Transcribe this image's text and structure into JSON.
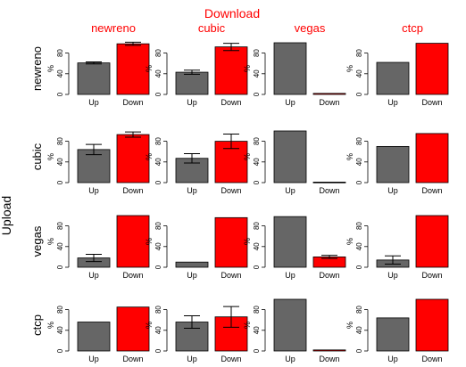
{
  "chart_data": {
    "type": "bar",
    "title": "Download",
    "row_title": "Upload",
    "download_labels": [
      "newreno",
      "cubic",
      "vegas",
      "ctcp"
    ],
    "upload_labels": [
      "newreno",
      "cubic",
      "vegas",
      "ctcp"
    ],
    "categories": [
      "Up",
      "Down"
    ],
    "ylabel": "%",
    "ylim": [
      0,
      100
    ],
    "yticks": [
      0,
      40,
      80
    ],
    "colors": {
      "Up": "#666666",
      "Down": "#ff0000",
      "title": "#ff0000"
    },
    "panels": [
      [
        {
          "values": [
            61,
            98
          ],
          "errors": [
            [
              59,
              63
            ],
            [
              95,
              101
            ]
          ]
        },
        {
          "values": [
            43,
            92
          ],
          "errors": [
            [
              39,
              47
            ],
            [
              85,
              99
            ]
          ]
        },
        {
          "values": [
            100,
            2
          ],
          "errors": null
        },
        {
          "values": [
            62,
            99
          ],
          "errors": null
        }
      ],
      [
        {
          "values": [
            64,
            93
          ],
          "errors": [
            [
              54,
              74
            ],
            [
              88,
              98
            ]
          ]
        },
        {
          "values": [
            47,
            80
          ],
          "errors": [
            [
              38,
              56
            ],
            [
              66,
              94
            ]
          ]
        },
        {
          "values": [
            100,
            1
          ],
          "errors": null
        },
        {
          "values": [
            70,
            95
          ],
          "errors": null
        }
      ],
      [
        {
          "values": [
            18,
            100
          ],
          "errors": [
            [
              11,
              25
            ],
            null
          ]
        },
        {
          "values": [
            10,
            96
          ],
          "errors": null
        },
        {
          "values": [
            98,
            20
          ],
          "errors": [
            null,
            [
              17,
              23
            ]
          ]
        },
        {
          "values": [
            14,
            100
          ],
          "errors": [
            [
              6,
              22
            ],
            null
          ]
        }
      ],
      [
        {
          "values": [
            56,
            85
          ],
          "errors": null
        },
        {
          "values": [
            56,
            66
          ],
          "errors": [
            [
              44,
              68
            ],
            [
              46,
              86
            ]
          ]
        },
        {
          "values": [
            100,
            2
          ],
          "errors": null
        },
        {
          "values": [
            64,
            100
          ],
          "errors": null
        }
      ]
    ]
  }
}
